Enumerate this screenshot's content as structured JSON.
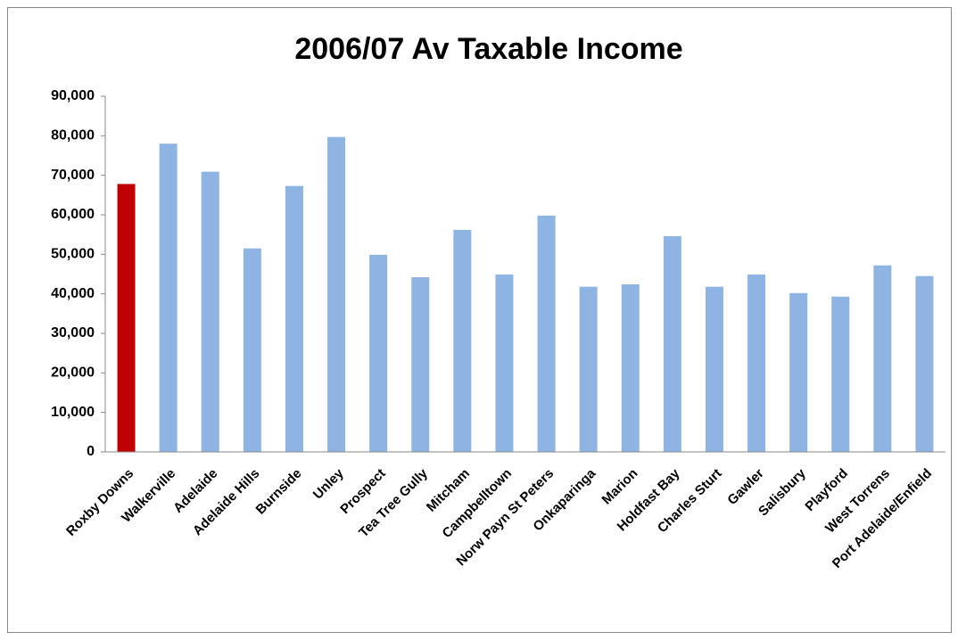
{
  "chart_data": {
    "type": "bar",
    "title": "2006/07 Av Taxable Income",
    "categories": [
      "Roxby Downs",
      "Walkerville",
      "Adelaide",
      "Adelaide Hills",
      "Burnside",
      "Unley",
      "Prospect",
      "Tea Tree Gully",
      "Mitcham",
      "Campbelltown",
      "Norw Payn St Peters",
      "Onkaparinga",
      "Marion",
      "Holdfast Bay",
      "Charles Sturt",
      "Gawler",
      "Salisbury",
      "Playford",
      "West Torrens",
      "Port Adelaide/Enfield"
    ],
    "values": [
      67800,
      78000,
      70900,
      51500,
      67300,
      79700,
      49900,
      44200,
      56200,
      44900,
      59800,
      41800,
      42400,
      54600,
      41800,
      44900,
      40200,
      39300,
      47200,
      44500
    ],
    "colors": [
      "#c00000",
      "#8db4e2",
      "#8db4e2",
      "#8db4e2",
      "#8db4e2",
      "#8db4e2",
      "#8db4e2",
      "#8db4e2",
      "#8db4e2",
      "#8db4e2",
      "#8db4e2",
      "#8db4e2",
      "#8db4e2",
      "#8db4e2",
      "#8db4e2",
      "#8db4e2",
      "#8db4e2",
      "#8db4e2",
      "#8db4e2",
      "#8db4e2"
    ],
    "ylim": [
      0,
      90000
    ],
    "yticks": [
      0,
      {
        "value": 10000,
        "label": "10,000"
      },
      {
        "value": 20000,
        "label": "20,000"
      },
      {
        "value": 30000,
        "label": "30,000"
      },
      {
        "value": 40000,
        "label": "40,000"
      },
      {
        "value": 50000,
        "label": "50,000"
      },
      {
        "value": 60000,
        "label": "60,000"
      },
      {
        "value": 70000,
        "label": "70,000"
      },
      {
        "value": 80000,
        "label": "80,000"
      },
      {
        "value": 90000,
        "label": "90,000"
      }
    ],
    "grid": false
  }
}
